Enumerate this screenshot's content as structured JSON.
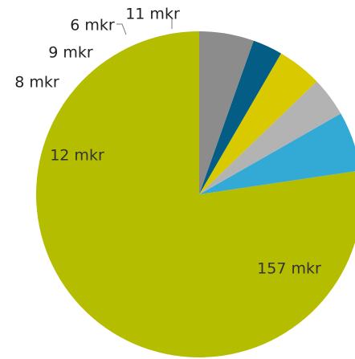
{
  "chart_data": {
    "type": "pie",
    "title": "",
    "legend": "none",
    "start": "top",
    "direction": "clockwise",
    "slices": [
      {
        "label": "157 mkr",
        "value": 157,
        "color": "#b5bd00"
      },
      {
        "label": "12 mkr",
        "value": 12,
        "color": "#33aad6"
      },
      {
        "label": "8 mkr",
        "value": 8,
        "color": "#b3b3b3"
      },
      {
        "label": "9 mkr",
        "value": 9,
        "color": "#d8c900"
      },
      {
        "label": "6 mkr",
        "value": 6,
        "color": "#035d85"
      },
      {
        "label": "11 mkr",
        "value": 11,
        "color": "#8c8c8c"
      }
    ]
  }
}
